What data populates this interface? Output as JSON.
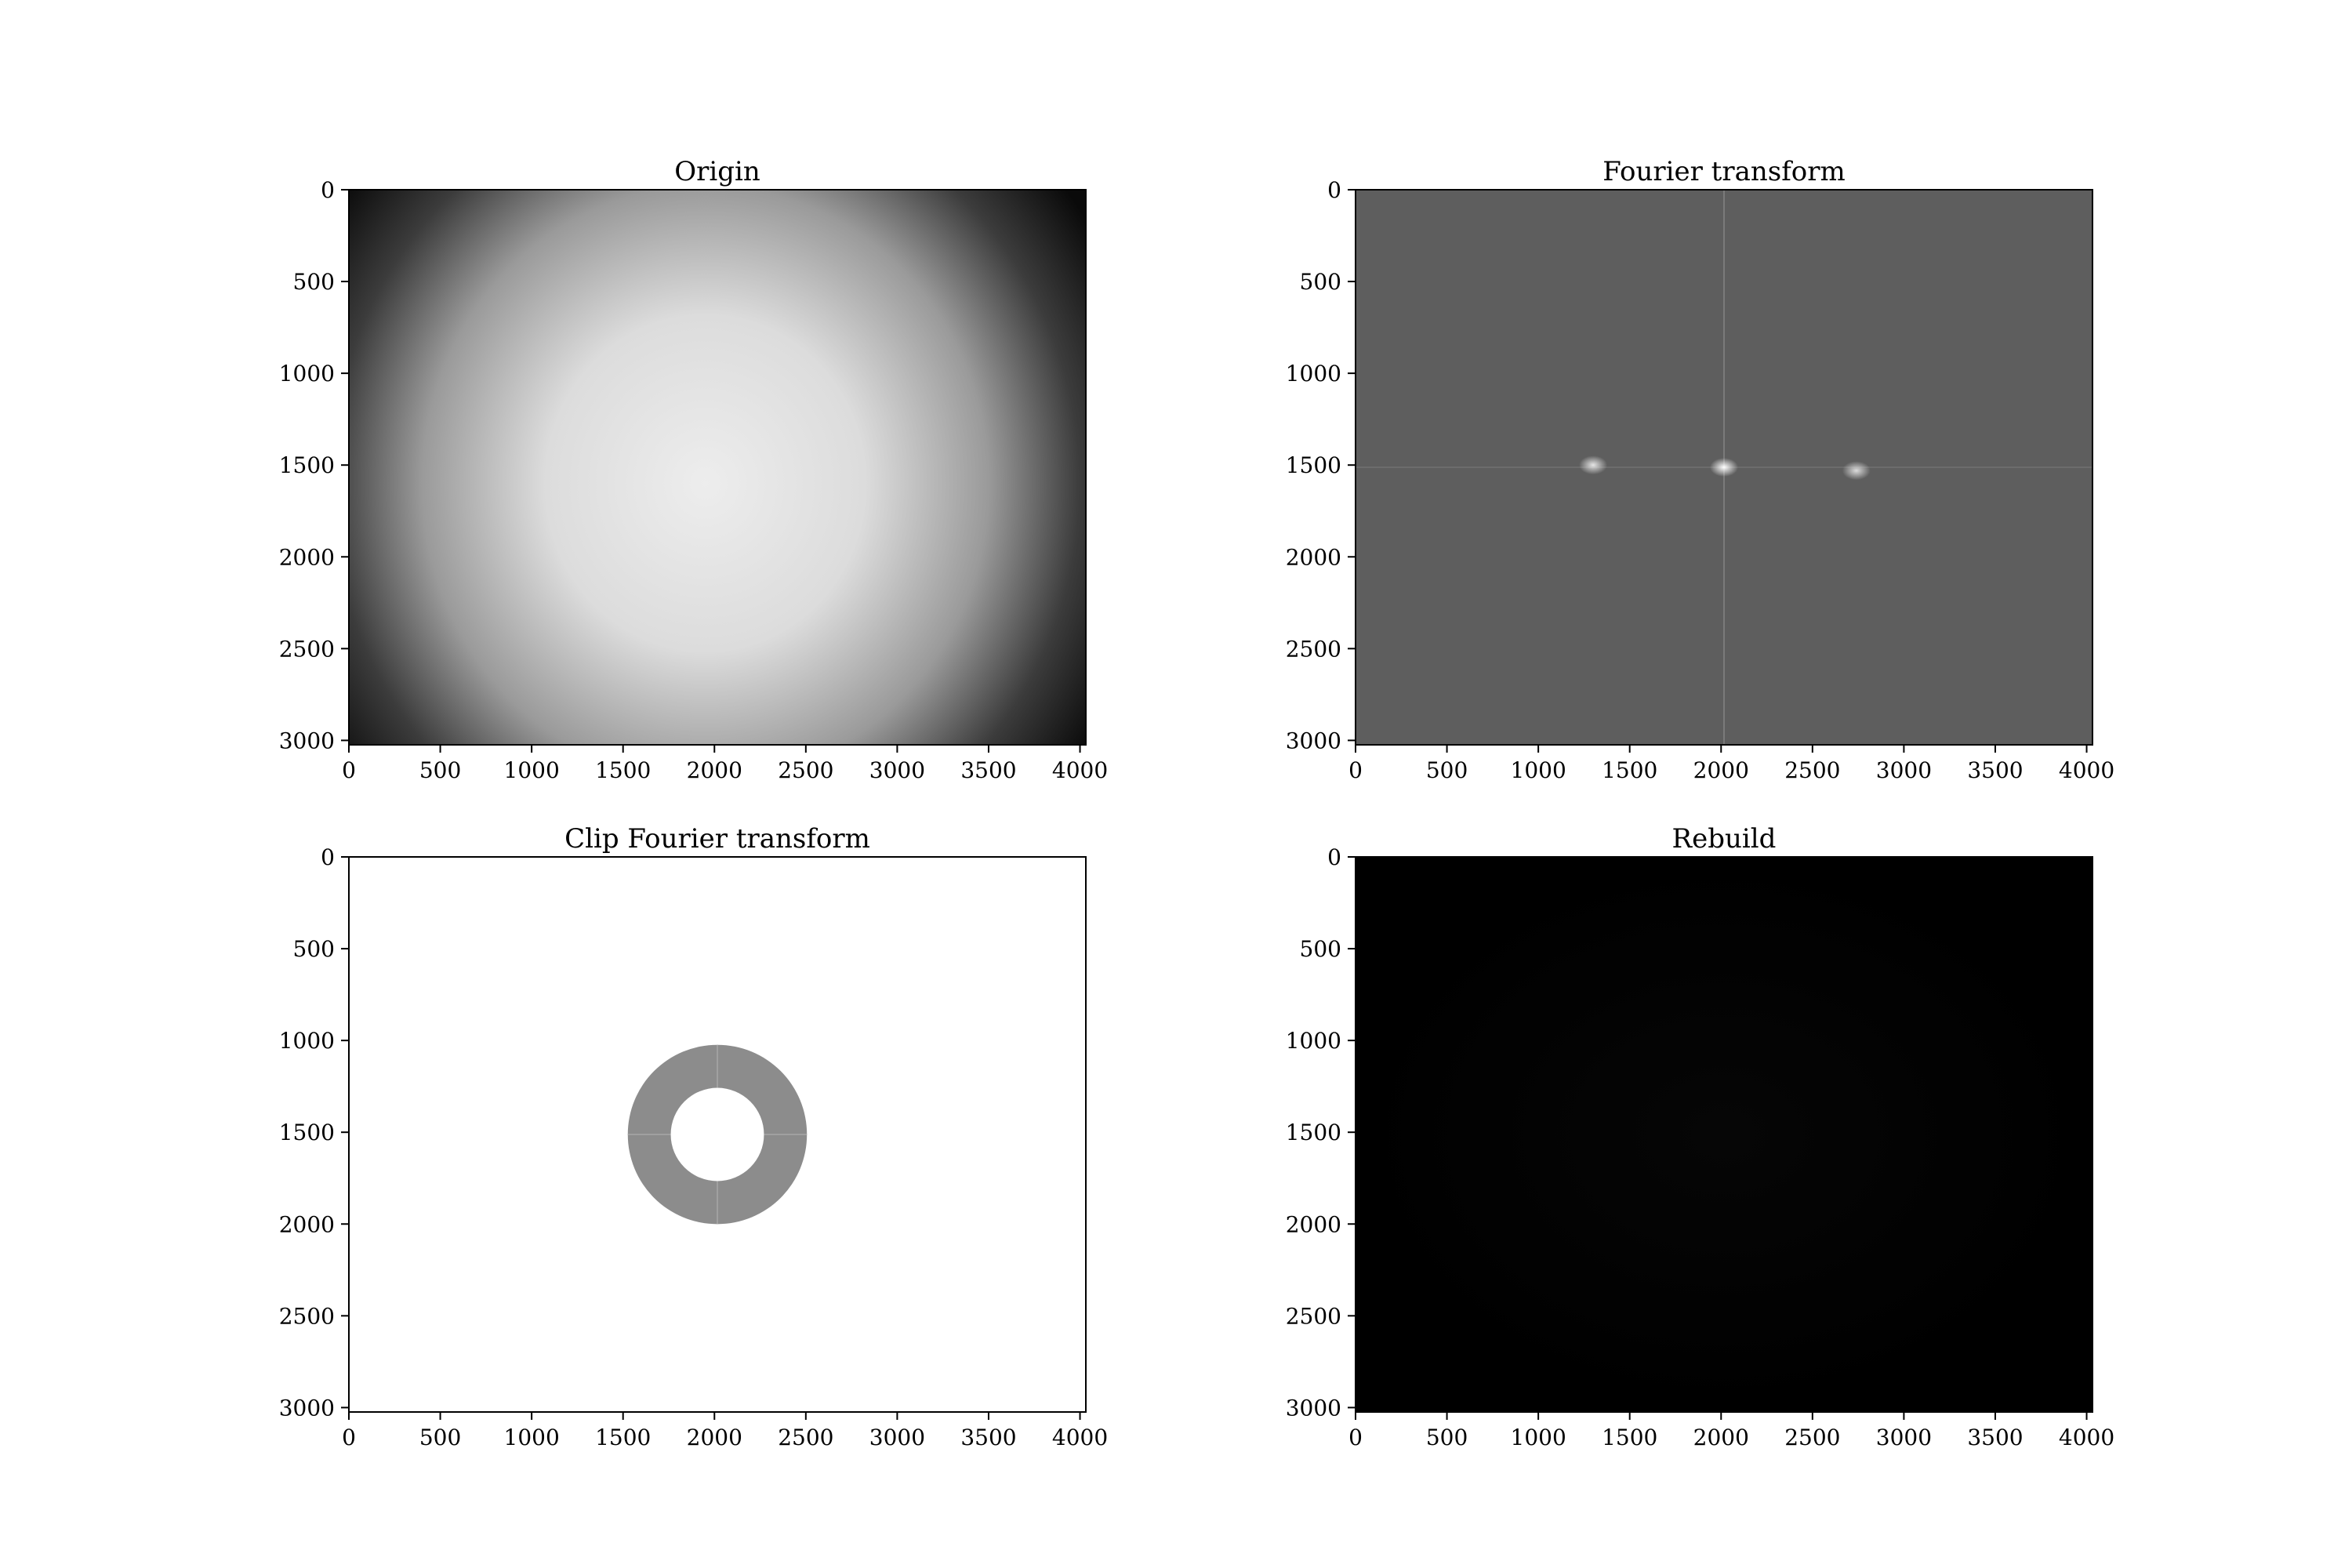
{
  "figure": {
    "background": "#ffffff"
  },
  "chart_data": [
    {
      "type": "heatmap",
      "title": "Origin",
      "xlim": [
        0,
        4032
      ],
      "ylim": [
        3024,
        0
      ],
      "xticks": [
        0,
        500,
        1000,
        1500,
        2000,
        2500,
        3000,
        3500,
        4000
      ],
      "yticks": [
        0,
        500,
        1000,
        1500,
        2000,
        2500,
        3000
      ],
      "colormap": "gray",
      "grid": false,
      "image": {
        "kind": "radial_brightness",
        "center": [
          1950,
          1600
        ],
        "center_value": "#ededed",
        "edge_value": "#0a0a0a"
      }
    },
    {
      "type": "heatmap",
      "title": "Fourier transform",
      "xlim": [
        0,
        4032
      ],
      "ylim": [
        3024,
        0
      ],
      "xticks": [
        0,
        500,
        1000,
        1500,
        2000,
        2500,
        3000,
        3500,
        4000
      ],
      "yticks": [
        0,
        500,
        1000,
        1500,
        2000,
        2500,
        3000
      ],
      "colormap": "gray",
      "grid": false,
      "image": {
        "kind": "spectrum",
        "background": "#5e5e5e",
        "axis_line_value": "#7a7a7a",
        "axis_lines": {
          "x": 2016,
          "y": 1512
        },
        "peaks": [
          {
            "x": 1300,
            "y": 1500,
            "color": "#e6e6e6"
          },
          {
            "x": 2016,
            "y": 1512,
            "color": "#ffffff"
          },
          {
            "x": 2740,
            "y": 1530,
            "color": "#dcdcdc"
          }
        ]
      }
    },
    {
      "type": "heatmap",
      "title": "Clip Fourier transform",
      "xlim": [
        0,
        4032
      ],
      "ylim": [
        3024,
        0
      ],
      "xticks": [
        0,
        500,
        1000,
        1500,
        2000,
        2500,
        3000,
        3500,
        4000
      ],
      "yticks": [
        0,
        500,
        1000,
        1500,
        2000,
        2500,
        3000
      ],
      "colormap": "gray",
      "grid": false,
      "image": {
        "kind": "annulus_mask",
        "background": "#ffffff",
        "ring_color": "#8c8c8c",
        "center": [
          2016,
          1512
        ],
        "inner_radius": 255,
        "outer_radius": 490
      }
    },
    {
      "type": "heatmap",
      "title": "Rebuild",
      "xlim": [
        0,
        4032
      ],
      "ylim": [
        3024,
        0
      ],
      "xticks": [
        0,
        500,
        1000,
        1500,
        2000,
        2500,
        3000,
        3500,
        4000
      ],
      "yticks": [
        0,
        500,
        1000,
        1500,
        2000,
        2500,
        3000
      ],
      "colormap": "gray",
      "grid": false,
      "image": {
        "kind": "dark",
        "background": "#000000",
        "center_value": "#060606"
      }
    }
  ]
}
